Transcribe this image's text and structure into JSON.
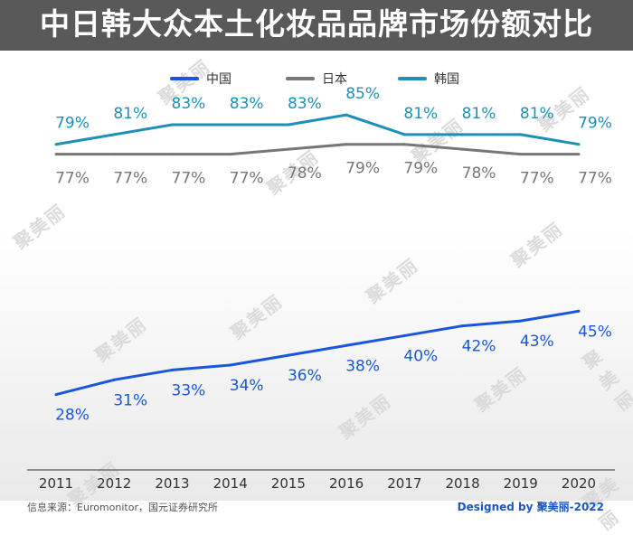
{
  "title": "中日韩大众本土化妆品品牌市场份额对比",
  "chart_data": {
    "type": "line",
    "title": "中日韩大众本土化妆品品牌市场份额对比",
    "x": [
      "2011",
      "2012",
      "2013",
      "2014",
      "2015",
      "2016",
      "2017",
      "2018",
      "2019",
      "2020"
    ],
    "ylim": [
      20,
      90
    ],
    "xlabel": "",
    "ylabel": "",
    "legend_position": "top",
    "series": [
      {
        "name": "中国",
        "color": "#1a56db",
        "values": [
          28,
          31,
          33,
          34,
          36,
          38,
          40,
          42,
          43,
          45
        ],
        "labels": [
          "28%",
          "31%",
          "33%",
          "34%",
          "36%",
          "38%",
          "40%",
          "42%",
          "43%",
          "45%"
        ]
      },
      {
        "name": "日本",
        "color": "#777777",
        "values": [
          77,
          77,
          77,
          77,
          78,
          79,
          79,
          78,
          77,
          77
        ],
        "labels": [
          "77%",
          "77%",
          "77%",
          "77%",
          "78%",
          "79%",
          "79%",
          "78%",
          "77%",
          "77%"
        ]
      },
      {
        "name": "韩国",
        "color": "#1e90b8",
        "values": [
          79,
          81,
          83,
          83,
          83,
          85,
          81,
          81,
          81,
          79
        ],
        "labels": [
          "79%",
          "81%",
          "83%",
          "83%",
          "83%",
          "85%",
          "81%",
          "81%",
          "81%",
          "79%"
        ]
      }
    ]
  },
  "watermark": "聚美丽",
  "footer": {
    "source": "信息来源：Euromonitor，国元证券研究所",
    "credit": "Designed by 聚美丽-2022"
  }
}
